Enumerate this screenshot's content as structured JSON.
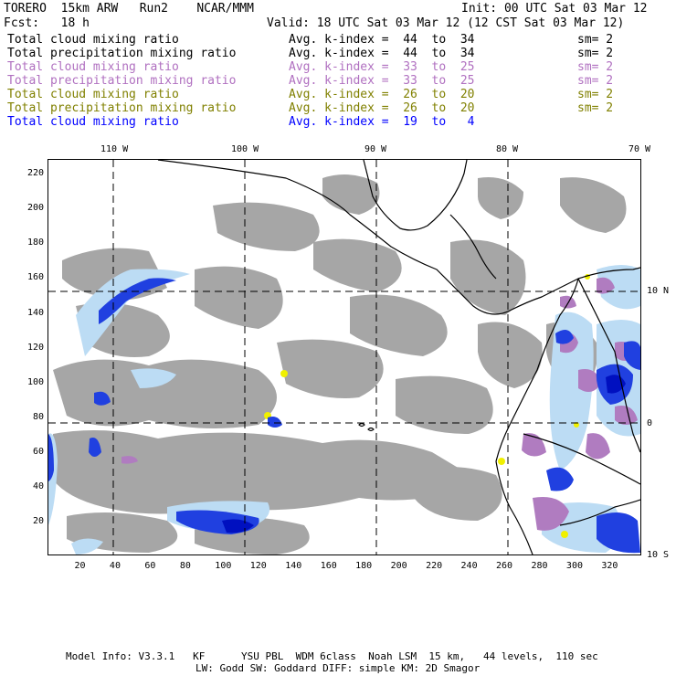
{
  "header": {
    "left1": "TORERO  15km ARW   Run2    NCAR/MMM",
    "right1": "Init: 00 UTC Sat 03 Mar 12",
    "left2": "Fcst:   18 h",
    "right2": "Valid: 18 UTC Sat 03 Mar 12 (12 CST Sat 03 Mar 12)"
  },
  "legend": [
    {
      "name": "Total cloud mixing ratio",
      "kindex": "Avg. k-index =  44  to  34",
      "sm": "sm= 2",
      "color": "#000000"
    },
    {
      "name": "Total precipitation mixing ratio",
      "kindex": "Avg. k-index =  44  to  34",
      "sm": "sm= 2",
      "color": "#000000"
    },
    {
      "name": "Total cloud mixing ratio",
      "kindex": "Avg. k-index =  33  to  25",
      "sm": "sm= 2",
      "color": "#b070c0"
    },
    {
      "name": "Total precipitation mixing ratio",
      "kindex": "Avg. k-index =  33  to  25",
      "sm": "sm= 2",
      "color": "#b070c0"
    },
    {
      "name": "Total cloud mixing ratio",
      "kindex": "Avg. k-index =  26  to  20",
      "sm": "sm= 2",
      "color": "#808000"
    },
    {
      "name": "Total precipitation mixing ratio",
      "kindex": "Avg. k-index =  26  to  20",
      "sm": "sm= 2",
      "color": "#808000"
    },
    {
      "name": "Total cloud mixing ratio",
      "kindex": "Avg. k-index =  19  to   4",
      "sm": "",
      "color": "#0000ff"
    }
  ],
  "map": {
    "lon_labels": [
      "110 W",
      "100 W",
      "90 W",
      "80 W",
      "70 W"
    ],
    "lat_labels": [
      "10 N",
      "0",
      "10 S"
    ],
    "x_ticks": [
      "20",
      "40",
      "60",
      "80",
      "100",
      "120",
      "140",
      "160",
      "180",
      "200",
      "220",
      "240",
      "260",
      "280",
      "300",
      "320"
    ],
    "y_ticks": [
      "220",
      "200",
      "180",
      "160",
      "140",
      "120",
      "100",
      "80",
      "60",
      "40",
      "20"
    ],
    "colors": {
      "gray": "#a6a6a6",
      "purple": "#b07cc0",
      "yellow": "#f0f000",
      "lightblue": "#bcdcf4",
      "blue": "#2040e0",
      "darkblue": "#0010c0"
    }
  },
  "footer": {
    "line1": "Model Info: V3.3.1   KF      YSU PBL  WDM 6class  Noah LSM  15 km,   44 levels,  110 sec",
    "line2": "LW: Godd SW: Goddard DIFF: simple KM: 2D Smagor"
  }
}
